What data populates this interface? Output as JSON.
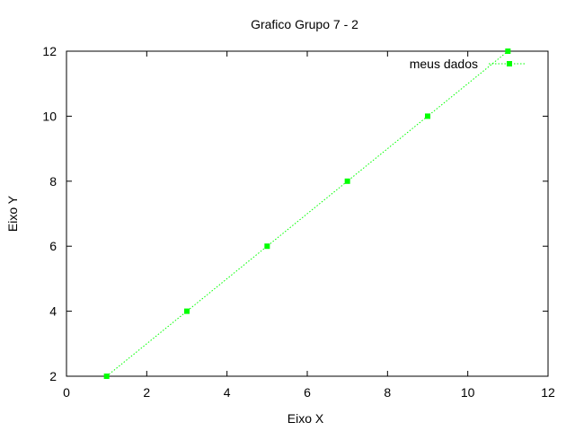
{
  "chart_data": {
    "type": "line",
    "title": "Grafico Grupo 7 - 2",
    "xlabel": "Eixo X",
    "ylabel": "Eixo Y",
    "xlim": [
      0,
      12
    ],
    "ylim": [
      2,
      12
    ],
    "xticks": [
      0,
      2,
      4,
      6,
      8,
      10,
      12
    ],
    "yticks": [
      2,
      4,
      6,
      8,
      10,
      12
    ],
    "grid": false,
    "legend_position": "top-right",
    "series": [
      {
        "name": "meus dados",
        "color": "#00ff00",
        "marker": "square",
        "line_style": "dotted",
        "x": [
          1,
          3,
          5,
          7,
          9,
          11
        ],
        "y": [
          2,
          4,
          6,
          8,
          10,
          12
        ]
      }
    ]
  }
}
